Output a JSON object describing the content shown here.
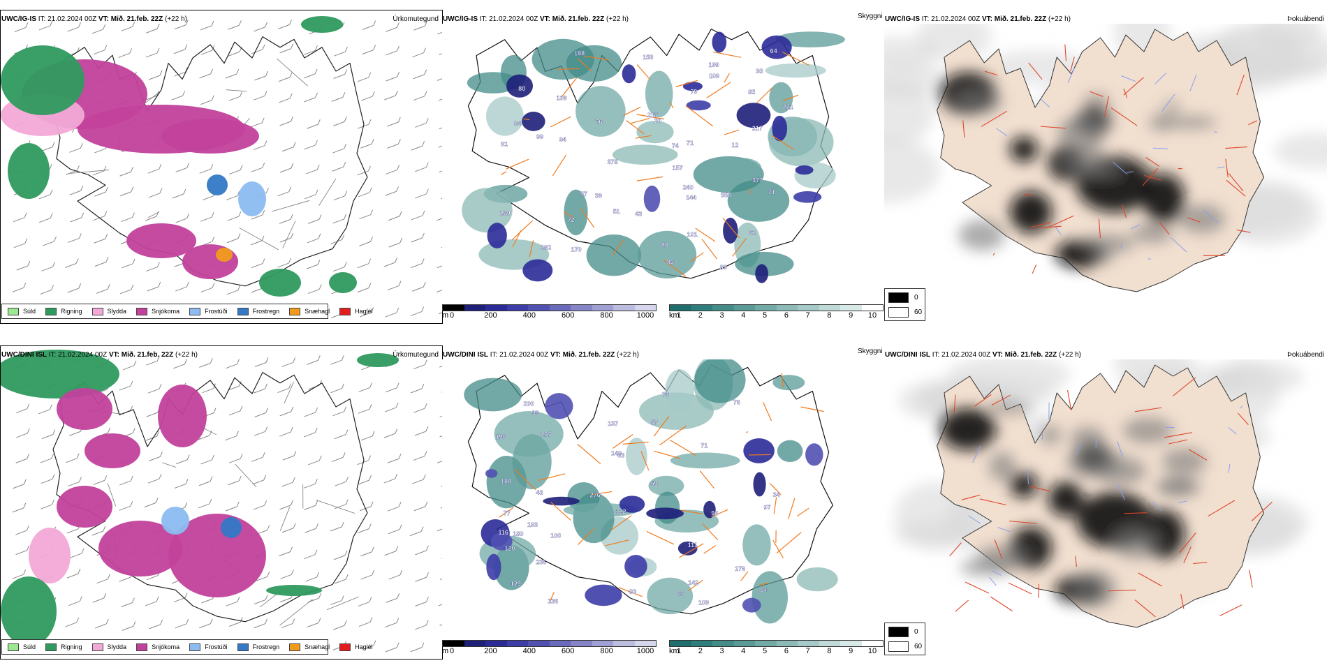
{
  "colors": {
    "sudd": "#9be891",
    "rigning": "#2f9a5e",
    "slydda": "#f2a9d6",
    "snjokoma": "#c2419c",
    "frostudi": "#8cbcf0",
    "frostregn": "#3478c6",
    "snaehagl": "#f19a1d",
    "haglel": "#e31d1d",
    "terrain_cells": [
      "#000000",
      "#1f1f7a",
      "#2b2b98",
      "#3d3da8",
      "#5151b2",
      "#6a6abd",
      "#8585c8",
      "#a0a0d4",
      "#bdbde0",
      "#d6d6ec"
    ],
    "cloud_cells": [
      "#1f6f6f",
      "#2e7f7c",
      "#438c88",
      "#5a9b97",
      "#72aaa6",
      "#8cbab6",
      "#a6cac7",
      "#c0dad8",
      "#d8eae8",
      "#ffffff"
    ],
    "roads": "#f07a1f",
    "fog_land": "#f1dfd0",
    "fog_roads": "#e0462a",
    "fog_rivers": "#8a9ff0"
  },
  "rows": [
    {
      "model": "UWC/IG-IS",
      "it_label": "IT:",
      "it_value": "21.02.2024 00Z",
      "vt_label": "VT:",
      "vt_value": "Mið. 21.feb. 22Z",
      "lead": "(+22 h)",
      "panel1_title": "Úrkomutegund",
      "panel3_title": "Þokuábendi",
      "side_label": "Skyggni",
      "labels": [
        "80",
        "71",
        "84",
        "51",
        "74",
        "80",
        "64",
        "70",
        "156",
        "91",
        "12",
        "109",
        "221",
        "199",
        "299",
        "192",
        "240",
        "170",
        "377",
        "217",
        "188",
        "43",
        "558",
        "378",
        "57",
        "101",
        "71",
        "144",
        "85",
        "72",
        "93",
        "109",
        "79",
        "76",
        "86",
        "217",
        "39",
        "83",
        "99",
        "94",
        "157",
        "62"
      ]
    },
    {
      "model": "UWC/DINI ISL",
      "it_label": "IT:",
      "it_value": "21.02.2024 00Z",
      "vt_label": "VT:",
      "vt_value": "Mið. 21.feb. 22Z",
      "lead": "(+22 h)",
      "panel1_title": "Úrkomutegund",
      "panel3_title": "Þokuábendi",
      "side_label": "Skyggni",
      "labels": [
        "71",
        "57",
        "64",
        "99",
        "109",
        "140",
        "200",
        "136",
        "111",
        "34",
        "276",
        "180",
        "116",
        "93",
        "176",
        "83",
        "97",
        "137",
        "193",
        "120",
        "129",
        "76",
        "236",
        "137",
        "180",
        "73",
        "77",
        "100",
        "142",
        "196",
        "59",
        "96",
        "122",
        "63",
        "43"
      ]
    }
  ],
  "legend": [
    {
      "label": "Súld",
      "color_key": "sudd"
    },
    {
      "label": "Rigning",
      "color_key": "rigning"
    },
    {
      "label": "Slydda",
      "color_key": "slydda"
    },
    {
      "label": "Snjókoma",
      "color_key": "snjokoma"
    },
    {
      "label": "Frostúði",
      "color_key": "frostudi"
    },
    {
      "label": "Frostregn",
      "color_key": "frostregn"
    },
    {
      "label": "Snæhagl",
      "color_key": "snaehagl"
    },
    {
      "label": "Haglél",
      "color_key": "haglel"
    }
  ],
  "terrain_bar": {
    "unit": "m",
    "ticks": [
      "0",
      "200",
      "400",
      "600",
      "800",
      "1000"
    ]
  },
  "cloud_bar": {
    "unit": "km",
    "ticks": [
      "1",
      "2",
      "3",
      "4",
      "5",
      "6",
      "7",
      "8",
      "9",
      "10"
    ]
  },
  "vis_legend": [
    {
      "value": "0",
      "color": "#000000"
    },
    {
      "value": "60",
      "color": "#ffffff"
    }
  ]
}
